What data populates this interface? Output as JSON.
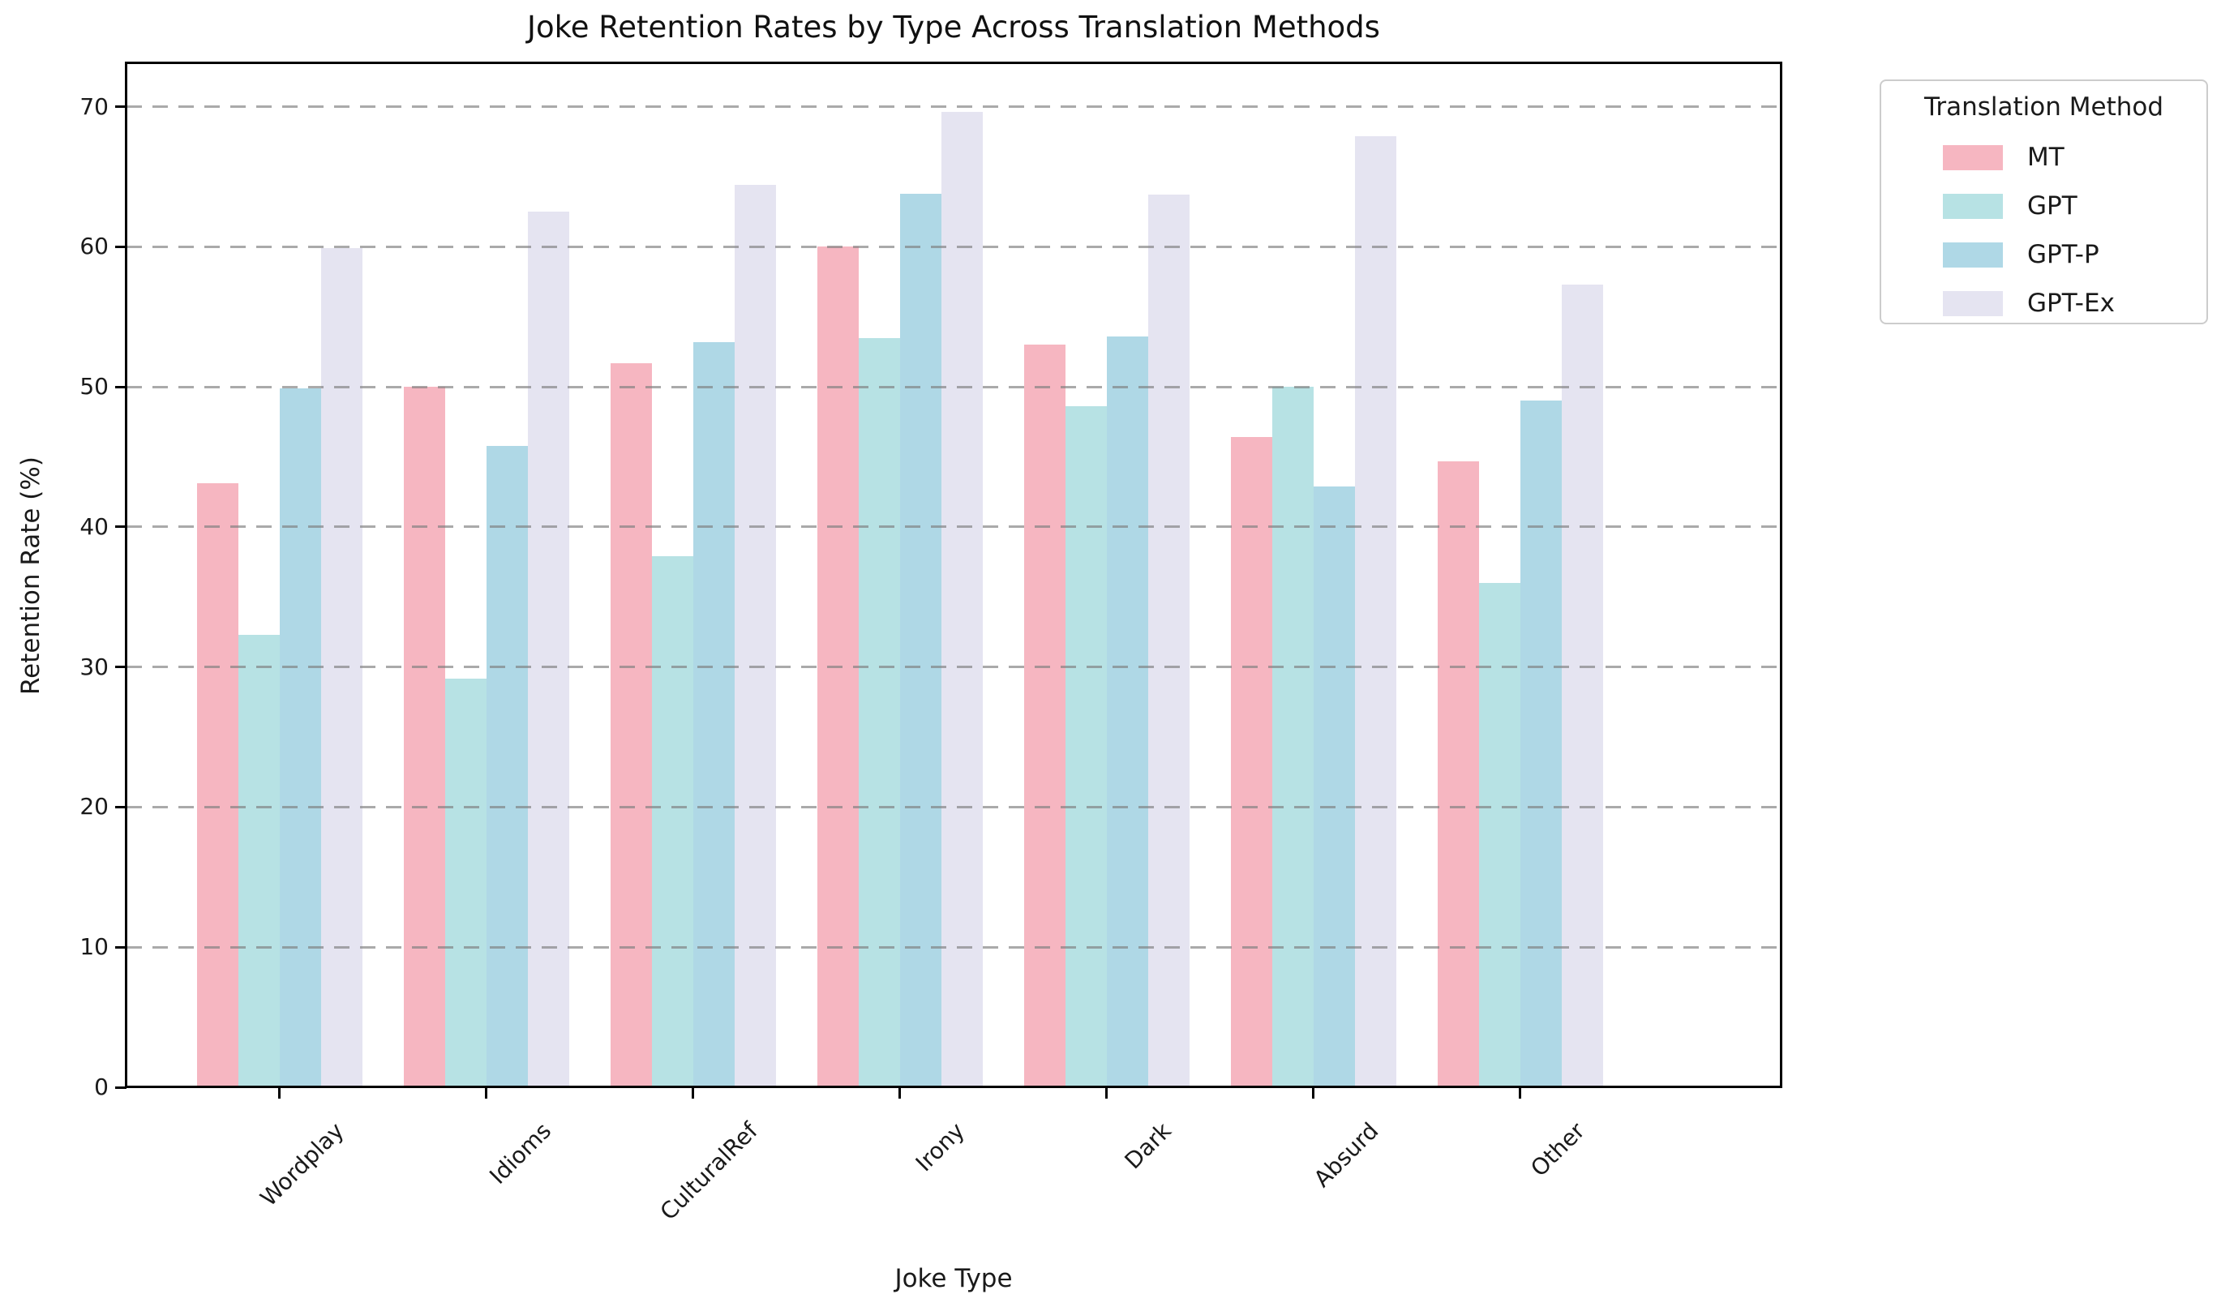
{
  "chart_data": {
    "type": "bar",
    "title": "Joke Retention Rates by Type Across Translation Methods",
    "xlabel": "Joke Type",
    "ylabel": "Retention Rate (%)",
    "categories": [
      "Wordplay",
      "Idioms",
      "CulturalRef",
      "Irony",
      "Dark",
      "Absurd",
      "Other"
    ],
    "series": [
      {
        "name": "MT",
        "color": "#F6B6C1",
        "values": [
          43.1,
          50.0,
          51.7,
          60.0,
          53.0,
          46.4,
          44.7
        ]
      },
      {
        "name": "GPT",
        "color": "#B7E2E4",
        "values": [
          32.3,
          29.2,
          37.9,
          53.5,
          48.6,
          50.0,
          36.0
        ]
      },
      {
        "name": "GPT-P",
        "color": "#AFD8E6",
        "values": [
          49.9,
          45.8,
          53.2,
          63.8,
          53.6,
          42.9,
          49.0
        ]
      },
      {
        "name": "GPT-Ex",
        "color": "#E5E4F1",
        "values": [
          59.9,
          62.5,
          64.4,
          69.6,
          63.7,
          67.9,
          57.3
        ]
      }
    ],
    "ylim": [
      0,
      73.1
    ],
    "yticks": [
      0,
      10,
      20,
      30,
      40,
      50,
      60,
      70
    ],
    "grid": "horizontal-dashed",
    "legend_title": "Translation Method",
    "legend_position": "outside-right",
    "bar_group_width_fraction": 0.8
  }
}
